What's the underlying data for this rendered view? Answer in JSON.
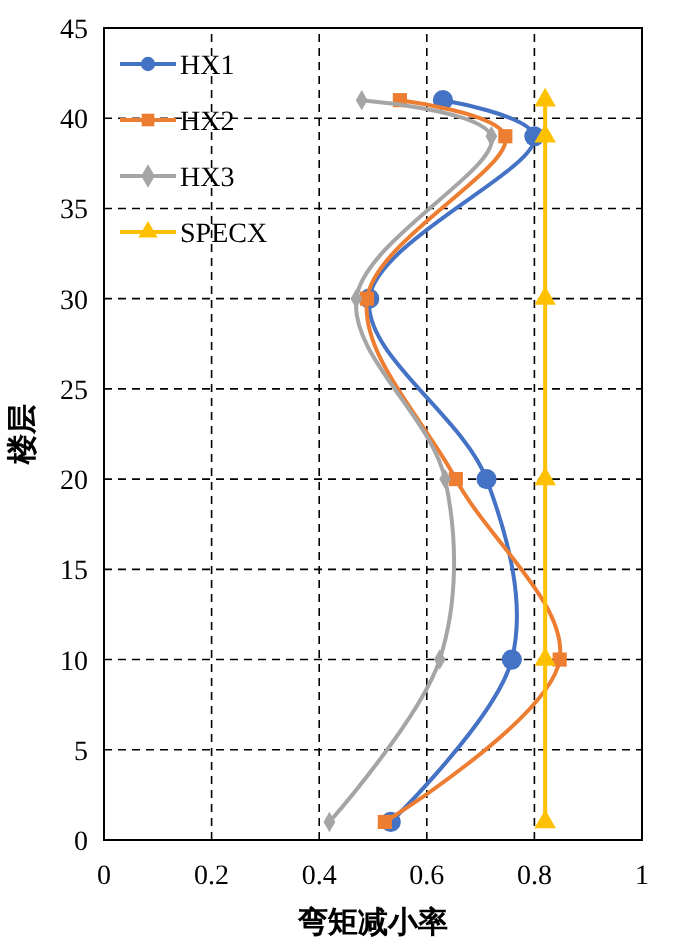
{
  "chart_data": {
    "type": "line",
    "xlabel": "弯矩减小率",
    "ylabel": "楼层",
    "xlim": [
      0,
      1
    ],
    "xticks": [
      0,
      0.2,
      0.4,
      0.6,
      0.8,
      1
    ],
    "ylim": [
      0,
      45
    ],
    "yticks": [
      0,
      5,
      10,
      15,
      20,
      25,
      30,
      35,
      40,
      45
    ],
    "grid": true,
    "legend": "top left",
    "line_style": "solid",
    "series": [
      {
        "name": "HX1",
        "color": "#4472c4",
        "marker": "circle",
        "x": [
          0.533,
          0.758,
          0.711,
          0.493,
          0.8,
          0.63
        ],
        "values": [
          1,
          10,
          20,
          30,
          39,
          41
        ]
      },
      {
        "name": "HX2",
        "color": "#ed7d31",
        "marker": "square",
        "x": [
          0.522,
          0.847,
          0.654,
          0.489,
          0.746,
          0.55
        ],
        "values": [
          1,
          10,
          20,
          30,
          39,
          41
        ]
      },
      {
        "name": "HX3",
        "color": "#a5a5a5",
        "marker": "diamond",
        "x": [
          0.419,
          0.624,
          0.634,
          0.469,
          0.72,
          0.479
        ],
        "values": [
          1,
          10,
          20,
          30,
          39,
          41
        ]
      },
      {
        "name": "SPECX",
        "color": "#ffc000",
        "marker": "triangle",
        "x": [
          0.82,
          0.82,
          0.82,
          0.82,
          0.82,
          0.82
        ],
        "values": [
          1,
          10,
          20,
          30,
          39,
          41
        ]
      }
    ]
  }
}
